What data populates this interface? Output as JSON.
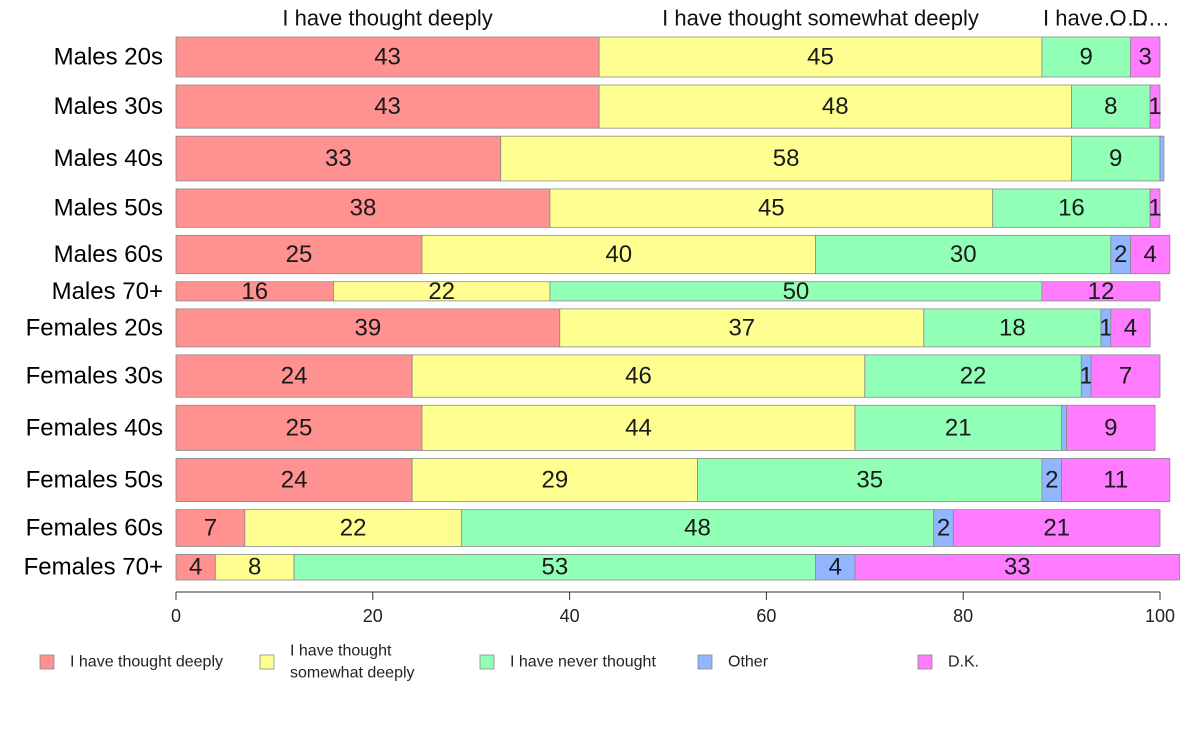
{
  "chart_data": {
    "type": "bar",
    "orientation": "horizontal",
    "stacked": true,
    "categories": [
      "Males 20s",
      "Males 30s",
      "Males 40s",
      "Males 50s",
      "Males 60s",
      "Males 70+",
      "Females 20s",
      "Females 30s",
      "Females 40s",
      "Females 50s",
      "Females 60s",
      "Females 70+"
    ],
    "category_widths": [
      100,
      108,
      112,
      96,
      96,
      48,
      95,
      106,
      113,
      108,
      92,
      64
    ],
    "series": [
      {
        "name": "I have thought deeply",
        "color": "#ff9191",
        "values": [
          43,
          43,
          33,
          38,
          25,
          16,
          39,
          24,
          25,
          24,
          7,
          4
        ],
        "labels": [
          "43",
          "43",
          "33",
          "38",
          "25",
          "16",
          "39",
          "24",
          "25",
          "24",
          "7",
          "4"
        ]
      },
      {
        "name": "I have thought somewhat deeply",
        "color": "#ffff91",
        "values": [
          45,
          48,
          58,
          45,
          40,
          22,
          37,
          46,
          44,
          29,
          22,
          8
        ],
        "labels": [
          "45",
          "48",
          "58",
          "45",
          "40",
          "22",
          "37",
          "46",
          "44",
          "29",
          "22",
          "8"
        ]
      },
      {
        "name": "I have never thought",
        "color": "#91ffb6",
        "values": [
          9,
          8,
          9,
          16,
          30,
          50,
          18,
          22,
          21,
          35,
          48,
          53
        ],
        "labels": [
          "9",
          "8",
          "9",
          "16",
          "30",
          "50",
          "18",
          "22",
          "21",
          "35",
          "48",
          "53"
        ]
      },
      {
        "name": "Other",
        "color": "#91b6ff",
        "values": [
          0,
          0,
          0.4,
          0,
          2,
          0,
          1,
          1,
          0.5,
          2,
          2,
          4
        ],
        "labels": [
          "",
          "",
          "",
          "",
          "2",
          "",
          "1",
          "1",
          "",
          "2",
          "2",
          "4"
        ]
      },
      {
        "name": "D.K.",
        "color": "#ff7bff",
        "values": [
          3,
          1,
          0,
          1,
          4,
          12,
          4,
          7,
          9,
          11,
          21,
          33
        ],
        "labels": [
          "3",
          "1",
          "",
          "1",
          "4",
          "12",
          "4",
          "7",
          "9",
          "11",
          "21",
          "33"
        ]
      }
    ],
    "x_ticks": [
      "0",
      "20",
      "40",
      "60",
      "80",
      "100"
    ],
    "xlim": [
      0,
      100
    ],
    "top_labels": [
      "I have thought deeply",
      "I have thought somewhat deeply",
      "I have…",
      "O…",
      "D…"
    ],
    "legend_position": "bottom",
    "legend": [
      {
        "lines": [
          "I have thought deeply"
        ]
      },
      {
        "lines": [
          "I have thought",
          "somewhat deeply"
        ]
      },
      {
        "lines": [
          "I have never thought"
        ]
      },
      {
        "lines": [
          "Other"
        ]
      },
      {
        "lines": [
          "D.K."
        ]
      }
    ],
    "grid": false
  }
}
